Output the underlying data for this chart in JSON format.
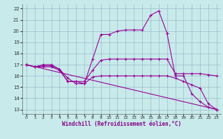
{
  "xlabel": "Windchill (Refroidissement éolien,°C)",
  "bg_color": "#c8eaea",
  "grid_color": "#99bbcc",
  "line_color": "#990099",
  "xlim": [
    -0.5,
    23.5
  ],
  "ylim": [
    12.6,
    22.4
  ],
  "xticks": [
    0,
    1,
    2,
    3,
    4,
    5,
    6,
    7,
    8,
    9,
    10,
    11,
    12,
    13,
    14,
    15,
    16,
    17,
    18,
    19,
    20,
    21,
    22,
    23
  ],
  "yticks": [
    13,
    14,
    15,
    16,
    17,
    18,
    19,
    20,
    21,
    22
  ],
  "lines": [
    {
      "x": [
        0,
        1,
        2,
        3,
        4,
        5,
        6,
        7,
        8,
        9,
        10,
        11,
        12,
        13,
        14,
        15,
        16,
        17,
        18,
        19,
        20,
        21,
        22,
        23
      ],
      "y": [
        17.0,
        16.8,
        17.0,
        17.0,
        16.6,
        15.8,
        15.3,
        15.3,
        17.5,
        19.7,
        19.7,
        20.0,
        20.1,
        20.1,
        20.1,
        21.4,
        21.8,
        19.8,
        16.0,
        16.0,
        14.4,
        13.7,
        13.2,
        13.0
      ]
    },
    {
      "x": [
        0,
        1,
        2,
        3,
        4,
        5,
        6,
        7,
        8,
        9,
        10,
        11,
        12,
        13,
        14,
        15,
        16,
        17,
        18,
        19,
        20,
        21,
        22,
        23
      ],
      "y": [
        17.0,
        16.8,
        16.9,
        16.9,
        16.6,
        15.5,
        15.5,
        15.5,
        16.5,
        17.4,
        17.5,
        17.5,
        17.5,
        17.5,
        17.5,
        17.5,
        17.5,
        17.5,
        16.2,
        16.2,
        16.2,
        16.2,
        16.1,
        16.0
      ]
    },
    {
      "x": [
        0,
        1,
        2,
        3,
        4,
        5,
        6,
        7,
        8,
        9,
        10,
        11,
        12,
        13,
        14,
        15,
        16,
        17,
        18,
        19,
        20,
        21,
        22,
        23
      ],
      "y": [
        17.0,
        16.8,
        16.8,
        16.8,
        16.5,
        15.5,
        15.5,
        15.3,
        15.9,
        16.0,
        16.0,
        16.0,
        16.0,
        16.0,
        16.0,
        16.0,
        16.0,
        16.0,
        15.8,
        15.5,
        15.2,
        14.9,
        13.5,
        13.0
      ]
    },
    {
      "x": [
        0,
        23
      ],
      "y": [
        17.0,
        13.0
      ]
    }
  ]
}
